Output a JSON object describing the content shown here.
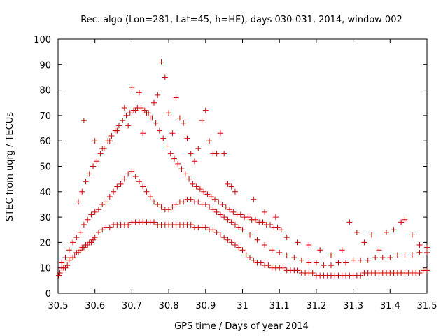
{
  "chart_data": {
    "type": "scatter",
    "title": "Rec. algo (Lon=281, Lat=45, h=HE), days 030-031, 2014, window 002",
    "xlabel": "GPS time / Days of year 2014",
    "ylabel": "STEC from uqrg / TECUs",
    "xlim": [
      30.5,
      31.5
    ],
    "ylim": [
      0,
      100
    ],
    "xticks": [
      "30.5",
      "30.6",
      "30.7",
      "30.8",
      "30.9",
      "31",
      "31.1",
      "31.2",
      "31.3",
      "31.4",
      "31.5"
    ],
    "yticks": [
      "0",
      "10",
      "20",
      "30",
      "40",
      "50",
      "60",
      "70",
      "80",
      "90",
      "100"
    ],
    "grid": false,
    "legend": "none",
    "marker": "plus",
    "color": "#cc0000",
    "series": [
      {
        "x": [
          30.502,
          30.505,
          30.51,
          30.515,
          30.52,
          30.525,
          30.53,
          30.535,
          30.54,
          30.545,
          30.55,
          30.555,
          30.56,
          30.565,
          30.57,
          30.575,
          30.58,
          30.585,
          30.59,
          30.595,
          30.6,
          30.61,
          30.62,
          30.63,
          30.64,
          30.65,
          30.66,
          30.67,
          30.68,
          30.69,
          30.7,
          30.71,
          30.72,
          30.73,
          30.74,
          30.75,
          30.76,
          30.77,
          30.78,
          30.79,
          30.8,
          30.81,
          30.82,
          30.83,
          30.84,
          30.85,
          30.86,
          30.87,
          30.88,
          30.89,
          30.9,
          30.91,
          30.92,
          30.93,
          30.94,
          30.95,
          30.96,
          30.97,
          30.98,
          30.99,
          31.0,
          31.01,
          31.02,
          31.03,
          31.04,
          31.05,
          31.06,
          31.07,
          31.08,
          31.09,
          31.1,
          31.11,
          31.12,
          31.13,
          31.14,
          31.15,
          31.16,
          31.17,
          31.18,
          31.19,
          31.2,
          31.21,
          31.22,
          31.23,
          31.24,
          31.25,
          31.26,
          31.27,
          31.28,
          31.29,
          31.3,
          31.31,
          31.32,
          31.33,
          31.34,
          31.35,
          31.36,
          31.37,
          31.38,
          31.39,
          31.4,
          31.41,
          31.42,
          31.43,
          31.44,
          31.45,
          31.46,
          31.47,
          31.48,
          31.49,
          31.5
        ],
        "y": [
          7,
          8,
          10,
          10,
          10,
          11,
          13,
          14,
          14,
          15,
          16,
          16,
          17,
          18,
          18,
          19,
          19,
          20,
          20,
          21,
          22,
          24,
          25,
          26,
          26,
          27,
          27,
          27,
          27,
          27,
          28,
          28,
          28,
          28,
          28,
          28,
          28,
          27,
          27,
          27,
          27,
          27,
          27,
          27,
          27,
          27,
          27,
          26,
          26,
          26,
          26,
          25,
          25,
          24,
          23,
          22,
          21,
          20,
          19,
          18,
          17,
          15,
          14,
          13,
          12,
          12,
          11,
          11,
          10,
          10,
          10,
          10,
          9,
          9,
          9,
          9,
          8,
          8,
          8,
          8,
          7,
          7,
          7,
          7,
          7,
          7,
          7,
          7,
          7,
          7,
          7,
          7,
          7,
          8,
          8,
          8,
          8,
          8,
          8,
          8,
          8,
          8,
          8,
          8,
          8,
          8,
          8,
          8,
          8,
          9,
          9
        ]
      },
      {
        "x": [
          30.51,
          30.52,
          30.53,
          30.54,
          30.55,
          30.56,
          30.57,
          30.58,
          30.59,
          30.6,
          30.61,
          30.62,
          30.63,
          30.64,
          30.65,
          30.66,
          30.67,
          30.68,
          30.69,
          30.7,
          30.71,
          30.72,
          30.73,
          30.74,
          30.75,
          30.76,
          30.77,
          30.78,
          30.79,
          30.8,
          30.81,
          30.82,
          30.83,
          30.84,
          30.85,
          30.86,
          30.87,
          30.88,
          30.89,
          30.9,
          30.91,
          30.92,
          30.93,
          30.94,
          30.95,
          30.96,
          30.97,
          30.98,
          30.99,
          31.0,
          31.02,
          31.04,
          31.06,
          31.08,
          31.1,
          31.12,
          31.14,
          31.16,
          31.18,
          31.2,
          31.22,
          31.24,
          31.26,
          31.28,
          31.3,
          31.32,
          31.34,
          31.36,
          31.38,
          31.4,
          31.42,
          31.44,
          31.46,
          31.48,
          31.5
        ],
        "y": [
          12,
          14,
          17,
          20,
          22,
          24,
          27,
          29,
          31,
          32,
          33,
          35,
          36,
          38,
          40,
          42,
          43,
          45,
          47,
          48,
          46,
          44,
          42,
          40,
          38,
          36,
          35,
          34,
          33,
          33,
          34,
          35,
          36,
          36,
          37,
          37,
          36,
          36,
          35,
          35,
          34,
          33,
          32,
          31,
          30,
          29,
          28,
          27,
          26,
          25,
          23,
          21,
          19,
          17,
          16,
          15,
          14,
          13,
          12,
          12,
          11,
          11,
          12,
          12,
          13,
          13,
          13,
          14,
          14,
          14,
          15,
          15,
          15,
          16,
          16
        ]
      },
      {
        "x": [
          30.555,
          30.565,
          30.575,
          30.585,
          30.595,
          30.605,
          30.615,
          30.625,
          30.635,
          30.645,
          30.655,
          30.665,
          30.675,
          30.685,
          30.695,
          30.705,
          30.715,
          30.725,
          30.735,
          30.745,
          30.755,
          30.765,
          30.775,
          30.785,
          30.795,
          30.805,
          30.815,
          30.825,
          30.835,
          30.845,
          30.855,
          30.865,
          30.875,
          30.885,
          30.895,
          30.905,
          30.915,
          30.925,
          30.935,
          30.945,
          30.955,
          30.965,
          30.975,
          30.985,
          30.995,
          31.005,
          31.015,
          31.025,
          31.035,
          31.045,
          31.055,
          31.065,
          31.075,
          31.085,
          31.095,
          31.105
        ],
        "y": [
          36,
          40,
          44,
          47,
          50,
          52,
          55,
          57,
          60,
          62,
          64,
          66,
          68,
          70,
          71,
          72,
          73,
          73,
          72,
          71,
          69,
          67,
          64,
          61,
          58,
          55,
          53,
          51,
          49,
          47,
          45,
          43,
          42,
          41,
          40,
          39,
          38,
          37,
          36,
          35,
          34,
          33,
          32,
          31,
          31,
          30,
          30,
          29,
          29,
          28,
          28,
          27,
          27,
          26,
          26,
          25
        ]
      },
      {
        "x": [
          30.57,
          30.6,
          30.62,
          30.64,
          30.66,
          30.68,
          30.69,
          30.7,
          30.71,
          30.72,
          30.73,
          30.74,
          30.75,
          30.76,
          30.77,
          30.78,
          30.79,
          30.8,
          30.81,
          30.82,
          30.83,
          30.84,
          30.85,
          30.86,
          30.87,
          30.88,
          30.89,
          30.9,
          30.91,
          30.92,
          30.93,
          30.94,
          30.95,
          30.96,
          30.97,
          30.98
        ],
        "y": [
          68,
          60,
          57,
          60,
          64,
          73,
          66,
          81,
          72,
          79,
          63,
          71,
          69,
          75,
          78,
          91,
          85,
          71,
          63,
          77,
          69,
          67,
          61,
          55,
          52,
          57,
          68,
          72,
          60,
          55,
          55,
          63,
          55,
          43,
          42,
          40
        ]
      },
      {
        "x": [
          31.03,
          31.06,
          31.09,
          31.12,
          31.15,
          31.18,
          31.21,
          31.24,
          31.27,
          31.29,
          31.31,
          31.33,
          31.35,
          31.37,
          31.39,
          31.41,
          31.43,
          31.44,
          31.46,
          31.48,
          31.5
        ],
        "y": [
          37,
          32,
          30,
          22,
          20,
          19,
          17,
          15,
          17,
          28,
          24,
          20,
          23,
          17,
          24,
          25,
          28,
          29,
          23,
          19,
          18
        ]
      }
    ]
  }
}
